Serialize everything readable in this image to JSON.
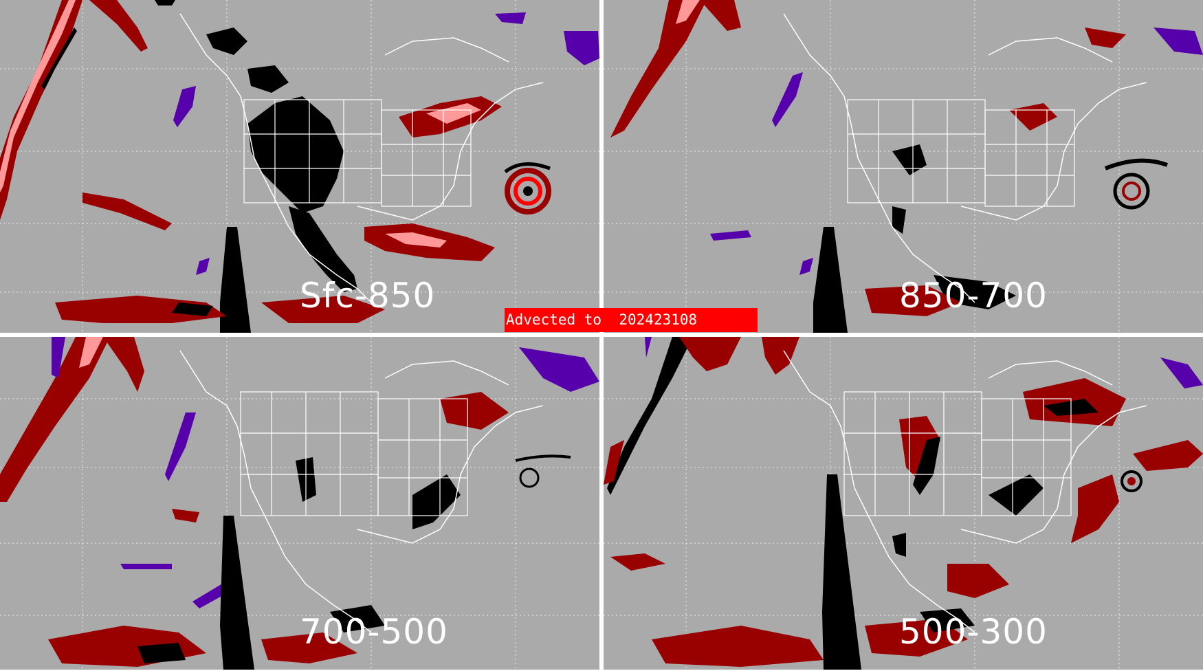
{
  "figure": {
    "advected_label": "Advected to",
    "advected_time": "202423108",
    "panels": [
      {
        "id": "tl",
        "layer": "Sfc-850"
      },
      {
        "id": "tr",
        "layer": "850-700"
      },
      {
        "id": "bl",
        "layer": "700-500"
      },
      {
        "id": "br",
        "layer": "500-300"
      }
    ]
  },
  "colors": {
    "background": "#aaaaaa",
    "coastline": "#ffffff",
    "gridlines": "#ffffff",
    "dark_red": "#990000",
    "pink": "#ff9999",
    "purple": "#5500aa",
    "black": "#000000",
    "banner": "#ff0000",
    "hurricane_core": "#ff0000"
  }
}
